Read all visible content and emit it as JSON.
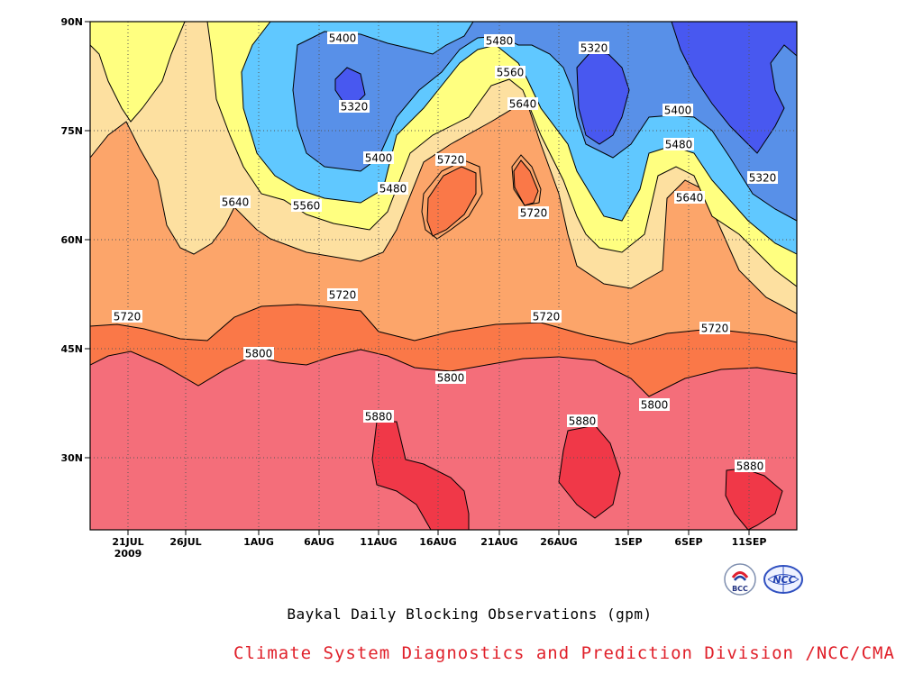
{
  "chart_data": {
    "type": "contour",
    "title": "Baykal Daily Blocking Observations (gpm)",
    "x_tick_labels": [
      "21JUL",
      "26JUL",
      "1AUG",
      "6AUG",
      "11AUG",
      "16AUG",
      "21AUG",
      "26AUG",
      "1SEP",
      "6SEP",
      "11SEP"
    ],
    "x_year_label": "2009",
    "y_tick_labels": [
      "30N",
      "45N",
      "60N",
      "75N",
      "90N"
    ],
    "y_ticks_deg": [
      30,
      45,
      60,
      75,
      90
    ],
    "ylim": [
      20,
      90
    ],
    "grid": "dotted",
    "contour_levels": [
      5320,
      5400,
      5480,
      5560,
      5640,
      5720,
      5800,
      5880
    ],
    "contour_labels": [
      "5400",
      "5320",
      "5480",
      "5560",
      "5640",
      "5320",
      "5400",
      "5480",
      "5640",
      "5320",
      "5720",
      "5720",
      "5400",
      "5480",
      "5560",
      "5640",
      "5720",
      "5720",
      "5720",
      "5720",
      "5800",
      "5800",
      "5800",
      "5880",
      "5880",
      "5880"
    ],
    "fill_colors": {
      "above_5880": "#f03848",
      "5800_5880": "#f46e7a",
      "5720_5800": "#fa7848",
      "5640_5720": "#fca56a",
      "5560_5640": "#fde0a0",
      "5480_5560": "#ffff80",
      "5400_5480": "#60c8ff",
      "5320_5400": "#5890e8",
      "below_5320": "#4858f0"
    }
  },
  "footer": {
    "credit": "Climate System Diagnostics and Prediction Division /NCC/CMA",
    "logo_left": "BCC",
    "logo_right": "NCC"
  }
}
